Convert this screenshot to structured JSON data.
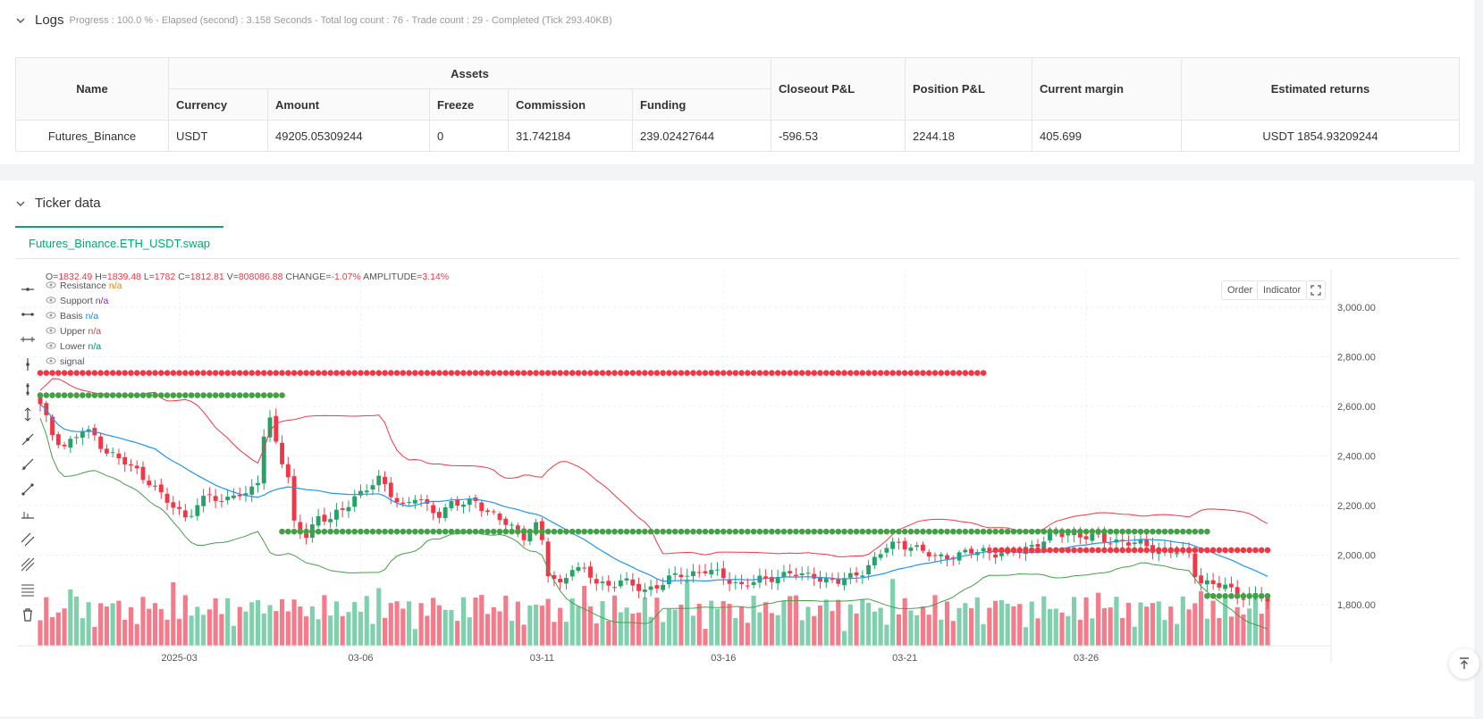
{
  "logs": {
    "title": "Logs",
    "meta": "Progress : 100.0 % - Elapsed (second) : 3.158   Seconds - Total log count : 76 - Trade count : 29 - Completed (Tick 293.40KB)"
  },
  "assets_table": {
    "group_header": "Assets",
    "headers": {
      "name": "Name",
      "currency": "Currency",
      "amount": "Amount",
      "freeze": "Freeze",
      "commission": "Commission",
      "funding": "Funding",
      "closeout": "Closeout P&L",
      "position": "Position P&L",
      "margin": "Current margin",
      "returns": "Estimated returns"
    },
    "row": {
      "name": "Futures_Binance",
      "currency": "USDT",
      "amount": "49205.05309244",
      "freeze": "0",
      "commission": "31.742184",
      "funding": "239.02427644",
      "closeout": "-596.53",
      "position": "2244.18",
      "margin": "405.699",
      "returns": "USDT 1854.93209244"
    }
  },
  "ticker": {
    "title": "Ticker data",
    "tab_label": "Futures_Binance.ETH_USDT.swap",
    "order_button": "Order",
    "indicator_button": "Indicator"
  },
  "ohlc": {
    "o_label": "O=",
    "o": "1832.49",
    "h_label": "H=",
    "h": "1839.48",
    "l_label": "L=",
    "l": "1782",
    "c_label": "C=",
    "c": "1812.81",
    "v_label": "V=",
    "v": "808086.88",
    "change_label": "CHANGE=",
    "change": "-1.07%",
    "amp_label": "AMPLITUDE=",
    "amp": "3.14%"
  },
  "legend": [
    {
      "name": "Resistance",
      "value": "n/a",
      "color": "#f57c00"
    },
    {
      "name": "Support",
      "value": "n/a",
      "color": "#8e24aa"
    },
    {
      "name": "Basis",
      "value": "n/a",
      "color": "#1e88e5"
    },
    {
      "name": "Upper",
      "value": "n/a",
      "color": "#e53935"
    },
    {
      "name": "Lower",
      "value": "n/a",
      "color": "#00897b"
    },
    {
      "name": "signal",
      "value": "",
      "color": "#555555"
    }
  ],
  "colors": {
    "up": "#26a269",
    "down": "#f23645",
    "volume_up": "#7fd1ad",
    "volume_down": "#f57a8a",
    "basis": "#2196f3",
    "upper": "#f23645",
    "lower": "#43a047",
    "resistance_dots": "#f23645",
    "support_dots": "#43a047",
    "accent": "#0aa66e"
  },
  "chart_data": {
    "type": "candlestick",
    "symbol": "Futures_Binance.ETH_USDT.swap",
    "y_ticks": [
      1800,
      2000,
      2200,
      2400,
      2600,
      2800,
      3000
    ],
    "y_tick_labels": [
      "1,800.00",
      "2,000.00",
      "2,200.00",
      "2,400.00",
      "2,600.00",
      "2,800.00",
      "3,000.00"
    ],
    "ylim": [
      1630,
      3120
    ],
    "x_tick_labels": [
      {
        "bar": 23,
        "label": "2025-03"
      },
      {
        "bar": 53,
        "label": "03-06"
      },
      {
        "bar": 83,
        "label": "03-11"
      },
      {
        "bar": 113,
        "label": "03-16"
      },
      {
        "bar": 143,
        "label": "03-21"
      },
      {
        "bar": 173,
        "label": "03-26"
      }
    ],
    "bar_count": 204,
    "close_anchors": [
      [
        0,
        2600
      ],
      [
        2,
        2490
      ],
      [
        4,
        2440
      ],
      [
        7,
        2500
      ],
      [
        9,
        2480
      ],
      [
        11,
        2420
      ],
      [
        14,
        2370
      ],
      [
        16,
        2340
      ],
      [
        18,
        2300
      ],
      [
        20,
        2240
      ],
      [
        22,
        2190
      ],
      [
        24,
        2160
      ],
      [
        26,
        2200
      ],
      [
        28,
        2240
      ],
      [
        30,
        2210
      ],
      [
        32,
        2260
      ],
      [
        34,
        2230
      ],
      [
        36,
        2300
      ],
      [
        37,
        2480
      ],
      [
        38,
        2550
      ],
      [
        39,
        2470
      ],
      [
        40,
        2380
      ],
      [
        41,
        2300
      ],
      [
        42,
        2120
      ],
      [
        44,
        2080
      ],
      [
        46,
        2160
      ],
      [
        48,
        2140
      ],
      [
        50,
        2180
      ],
      [
        52,
        2240
      ],
      [
        54,
        2270
      ],
      [
        56,
        2300
      ],
      [
        58,
        2250
      ],
      [
        60,
        2200
      ],
      [
        62,
        2230
      ],
      [
        64,
        2190
      ],
      [
        66,
        2170
      ],
      [
        68,
        2210
      ],
      [
        70,
        2200
      ],
      [
        72,
        2220
      ],
      [
        74,
        2180
      ],
      [
        76,
        2140
      ],
      [
        78,
        2110
      ],
      [
        80,
        2080
      ],
      [
        82,
        2120
      ],
      [
        83,
        2050
      ],
      [
        84,
        1920
      ],
      [
        86,
        1880
      ],
      [
        88,
        1960
      ],
      [
        90,
        1930
      ],
      [
        92,
        1890
      ],
      [
        94,
        1880
      ],
      [
        96,
        1900
      ],
      [
        98,
        1870
      ],
      [
        100,
        1860
      ],
      [
        102,
        1880
      ],
      [
        104,
        1900
      ],
      [
        106,
        1920
      ],
      [
        108,
        1930
      ],
      [
        110,
        1940
      ],
      [
        112,
        1920
      ],
      [
        114,
        1900
      ],
      [
        116,
        1880
      ],
      [
        118,
        1890
      ],
      [
        120,
        1900
      ],
      [
        122,
        1920
      ],
      [
        124,
        1930
      ],
      [
        126,
        1910
      ],
      [
        128,
        1920
      ],
      [
        130,
        1900
      ],
      [
        132,
        1890
      ],
      [
        134,
        1910
      ],
      [
        136,
        1940
      ],
      [
        138,
        1980
      ],
      [
        140,
        2030
      ],
      [
        142,
        2050
      ],
      [
        144,
        2040
      ],
      [
        146,
        2010
      ],
      [
        148,
        1990
      ],
      [
        150,
        2000
      ],
      [
        152,
        2000
      ],
      [
        154,
        2010
      ],
      [
        156,
        2020
      ],
      [
        158,
        2010
      ],
      [
        160,
        2000
      ],
      [
        162,
        2020
      ],
      [
        164,
        2040
      ],
      [
        166,
        2060
      ],
      [
        168,
        2080
      ],
      [
        170,
        2090
      ],
      [
        172,
        2080
      ],
      [
        174,
        2070
      ],
      [
        176,
        2060
      ],
      [
        178,
        2060
      ],
      [
        180,
        2050
      ],
      [
        182,
        2040
      ],
      [
        184,
        2030
      ],
      [
        186,
        2020
      ],
      [
        188,
        2010
      ],
      [
        190,
        2000
      ],
      [
        191,
        1930
      ],
      [
        192,
        1900
      ],
      [
        194,
        1880
      ],
      [
        196,
        1870
      ],
      [
        198,
        1840
      ],
      [
        200,
        1840
      ],
      [
        202,
        1830
      ],
      [
        203,
        1812
      ]
    ],
    "volume_max": 1000,
    "resistance_levels": [
      {
        "from_bar": 0,
        "to_bar": 156,
        "value": 2735
      },
      {
        "from_bar": 158,
        "to_bar": 203,
        "value": 2020
      }
    ],
    "support_levels": [
      {
        "from_bar": 0,
        "to_bar": 40,
        "value": 2645
      },
      {
        "from_bar": 40,
        "to_bar": 193,
        "value": 2095
      },
      {
        "from_bar": 193,
        "to_bar": 203,
        "value": 1835
      }
    ],
    "bollinger": {
      "length": 20,
      "mult": 2,
      "series": [
        "Basis",
        "Upper",
        "Lower"
      ]
    },
    "last_bar": {
      "open": 1832.49,
      "high": 1839.48,
      "low": 1782,
      "close": 1812.81,
      "volume": 808086.88
    }
  }
}
